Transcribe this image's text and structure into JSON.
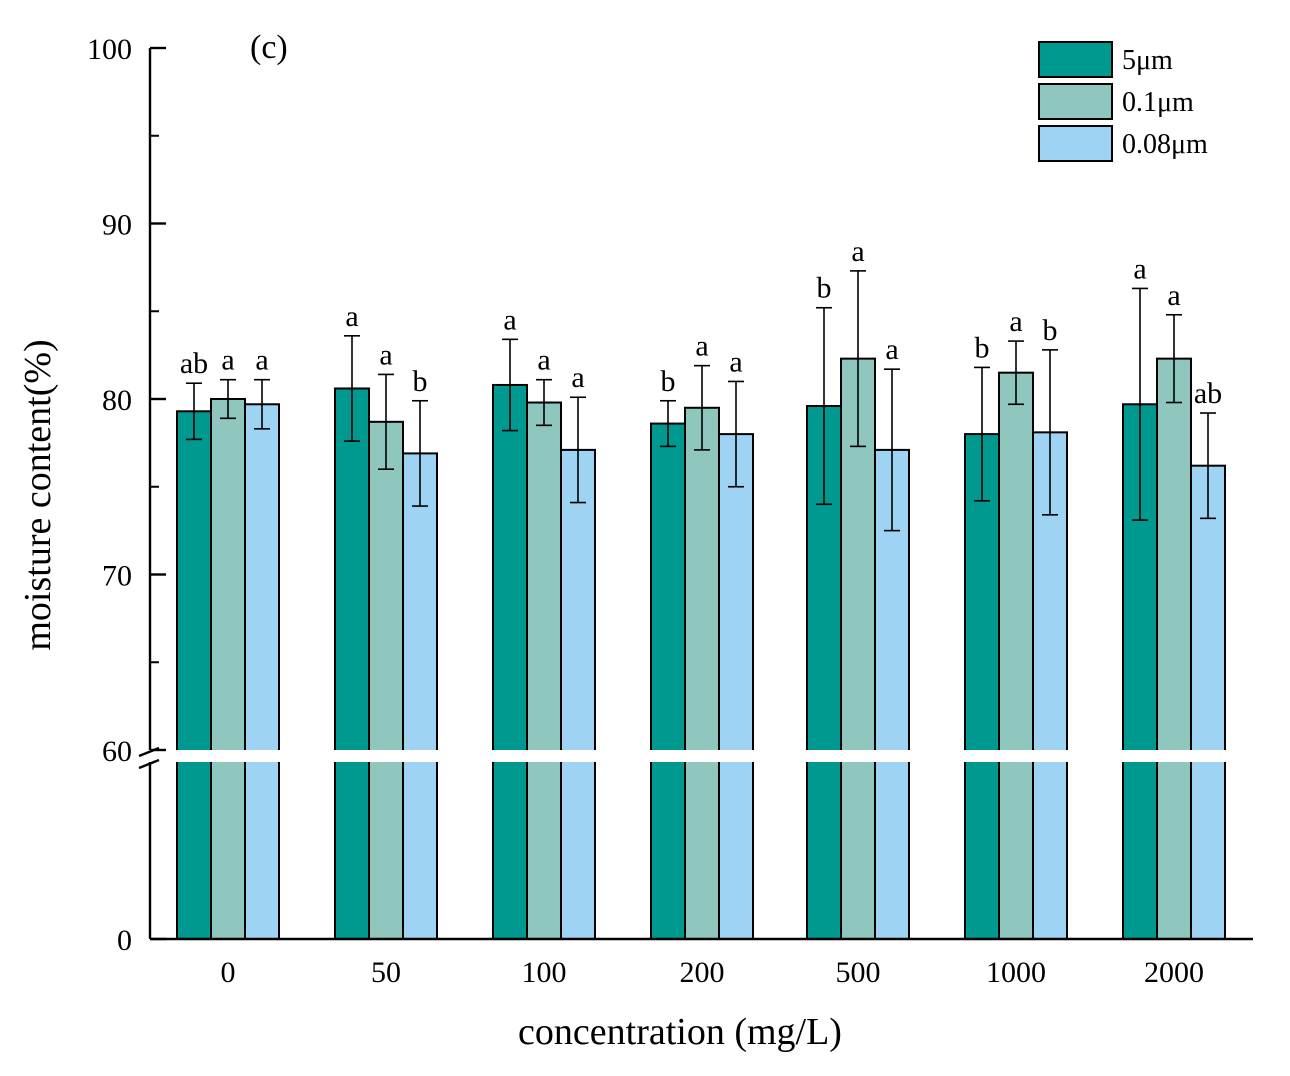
{
  "chart_data": {
    "type": "bar",
    "panel_label": "(c)",
    "xlabel": "concentration (mg/L)",
    "ylabel": "moisture content(%)",
    "categories": [
      "0",
      "50",
      "100",
      "200",
      "500",
      "1000",
      "2000"
    ],
    "y_ticks": [
      "100",
      "90",
      "80",
      "70",
      "60",
      "0"
    ],
    "ylim_upper": [
      60,
      100
    ],
    "ylim_lower": [
      0,
      60
    ],
    "axis_break": true,
    "legend_position": "top-right",
    "series": [
      {
        "name": "5μm",
        "color": "#009990",
        "values": [
          79.3,
          80.6,
          80.8,
          78.6,
          79.6,
          78.0,
          79.7
        ],
        "errors": [
          1.6,
          3.0,
          2.6,
          1.3,
          5.6,
          3.8,
          6.6
        ],
        "significance": [
          "ab",
          "a",
          "a",
          "b",
          "b",
          "b",
          "a"
        ]
      },
      {
        "name": "0.1μm",
        "color": "#8fc6bd",
        "values": [
          80.0,
          78.7,
          79.8,
          79.5,
          82.3,
          81.5,
          82.3
        ],
        "errors": [
          1.1,
          2.7,
          1.3,
          2.4,
          5.0,
          1.8,
          2.5
        ],
        "significance": [
          "a",
          "a",
          "a",
          "a",
          "a",
          "a",
          "a"
        ]
      },
      {
        "name": "0.08μm",
        "color": "#9fd3f3",
        "values": [
          79.7,
          76.9,
          77.1,
          78.0,
          77.1,
          78.1,
          76.2
        ],
        "errors": [
          1.4,
          3.0,
          3.0,
          3.0,
          4.6,
          4.7,
          3.0
        ],
        "significance": [
          "a",
          "b",
          "a",
          "a",
          "a",
          "b",
          "ab"
        ]
      }
    ]
  }
}
